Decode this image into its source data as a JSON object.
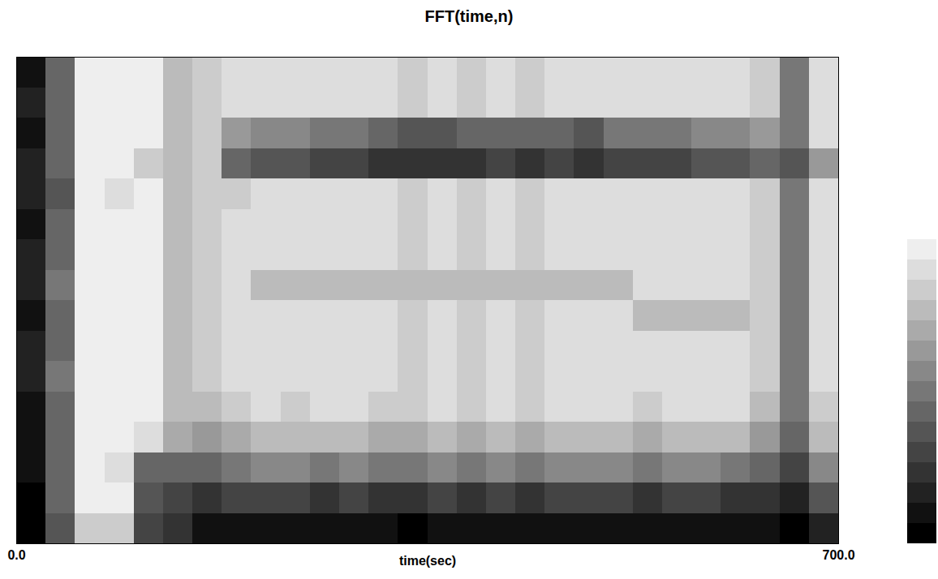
{
  "chart_data": {
    "type": "heatmap",
    "title": "FFT(time,n)",
    "xlabel": "time(sec)",
    "xlim": [
      0,
      700
    ],
    "xticks": [
      {
        "value": 0,
        "label": "0.0"
      },
      {
        "value": 700,
        "label": "700.0"
      }
    ],
    "ylim": [
      0,
      16
    ],
    "tick_labels": "x",
    "clim": [
      0,
      15
    ],
    "x_bins": [
      0,
      25,
      50,
      75,
      100,
      125,
      150,
      175,
      200,
      225,
      250,
      275,
      300,
      325,
      350,
      375,
      400,
      425,
      450,
      475,
      500,
      525,
      550,
      575,
      600,
      625,
      650,
      675,
      700
    ],
    "y_bins": [
      0,
      1,
      2,
      3,
      4,
      5,
      6,
      7,
      8,
      9,
      10,
      11,
      12,
      13,
      14,
      15,
      16
    ],
    "cells": [
      [
        15,
        15,
        14,
        14,
        14,
        13,
        13,
        14,
        13,
        13,
        14,
        13,
        13,
        14,
        13,
        14
      ],
      [
        10,
        9,
        9,
        9,
        9,
        8,
        9,
        9,
        8,
        9,
        9,
        10,
        9,
        9,
        9,
        9
      ],
      [
        3,
        1,
        1,
        1,
        1,
        1,
        1,
        1,
        1,
        1,
        1,
        1,
        1,
        1,
        1,
        1
      ],
      [
        3,
        1,
        2,
        1,
        1,
        1,
        1,
        1,
        1,
        1,
        1,
        2,
        1,
        1,
        1,
        1
      ],
      [
        11,
        10,
        9,
        2,
        1,
        1,
        1,
        1,
        1,
        1,
        1,
        1,
        3,
        1,
        1,
        1
      ],
      [
        12,
        11,
        9,
        5,
        4,
        4,
        4,
        4,
        4,
        4,
        4,
        4,
        4,
        4,
        4,
        4
      ],
      [
        14,
        12,
        9,
        6,
        4,
        3,
        3,
        3,
        3,
        3,
        3,
        3,
        3,
        3,
        3,
        3
      ],
      [
        14,
        11,
        8,
        5,
        3,
        2,
        2,
        2,
        2,
        2,
        2,
        3,
        9,
        6,
        2,
        2
      ],
      [
        14,
        11,
        7,
        4,
        2,
        2,
        2,
        2,
        4,
        2,
        2,
        2,
        10,
        7,
        2,
        2
      ],
      [
        14,
        11,
        7,
        4,
        3,
        2,
        2,
        2,
        4,
        2,
        2,
        2,
        10,
        7,
        2,
        2
      ],
      [
        14,
        12,
        8,
        4,
        2,
        2,
        2,
        2,
        4,
        2,
        2,
        2,
        11,
        8,
        2,
        2
      ],
      [
        14,
        11,
        7,
        4,
        2,
        2,
        2,
        2,
        4,
        2,
        2,
        2,
        11,
        8,
        2,
        2
      ],
      [
        14,
        12,
        8,
        5,
        3,
        2,
        2,
        2,
        4,
        2,
        2,
        2,
        12,
        9,
        2,
        2
      ],
      [
        15,
        12,
        8,
        5,
        3,
        3,
        3,
        3,
        4,
        3,
        3,
        3,
        12,
        10,
        3,
        3
      ],
      [
        14,
        11,
        7,
        4,
        2,
        2,
        2,
        2,
        4,
        2,
        2,
        2,
        12,
        10,
        2,
        2
      ],
      [
        14,
        12,
        8,
        5,
        3,
        3,
        3,
        3,
        4,
        3,
        3,
        3,
        12,
        9,
        3,
        3
      ],
      [
        14,
        11,
        7,
        4,
        2,
        2,
        2,
        2,
        4,
        2,
        2,
        2,
        11,
        9,
        2,
        2
      ],
      [
        14,
        12,
        8,
        5,
        3,
        3,
        3,
        3,
        4,
        3,
        3,
        3,
        12,
        9,
        3,
        3
      ],
      [
        14,
        11,
        7,
        4,
        2,
        2,
        2,
        2,
        4,
        2,
        2,
        2,
        11,
        9,
        2,
        2
      ],
      [
        14,
        11,
        7,
        4,
        2,
        2,
        2,
        2,
        4,
        2,
        2,
        2,
        12,
        10,
        2,
        2
      ],
      [
        14,
        11,
        7,
        4,
        2,
        2,
        2,
        2,
        4,
        2,
        2,
        2,
        11,
        8,
        2,
        2
      ],
      [
        14,
        12,
        8,
        5,
        3,
        2,
        2,
        4,
        2,
        2,
        2,
        2,
        11,
        8,
        2,
        2
      ],
      [
        14,
        11,
        7,
        4,
        2,
        2,
        2,
        4,
        2,
        2,
        2,
        2,
        11,
        8,
        2,
        2
      ],
      [
        14,
        11,
        7,
        4,
        2,
        2,
        2,
        4,
        2,
        2,
        2,
        2,
        10,
        7,
        2,
        2
      ],
      [
        14,
        12,
        8,
        4,
        2,
        2,
        2,
        4,
        2,
        2,
        2,
        2,
        10,
        7,
        2,
        2
      ],
      [
        14,
        12,
        9,
        6,
        4,
        3,
        3,
        3,
        3,
        3,
        3,
        3,
        9,
        6,
        3,
        3
      ],
      [
        15,
        13,
        11,
        9,
        8,
        8,
        8,
        8,
        8,
        8,
        8,
        8,
        10,
        8,
        8,
        8
      ],
      [
        13,
        10,
        7,
        4,
        3,
        2,
        2,
        2,
        2,
        2,
        2,
        2,
        6,
        2,
        2,
        2
      ]
    ]
  }
}
